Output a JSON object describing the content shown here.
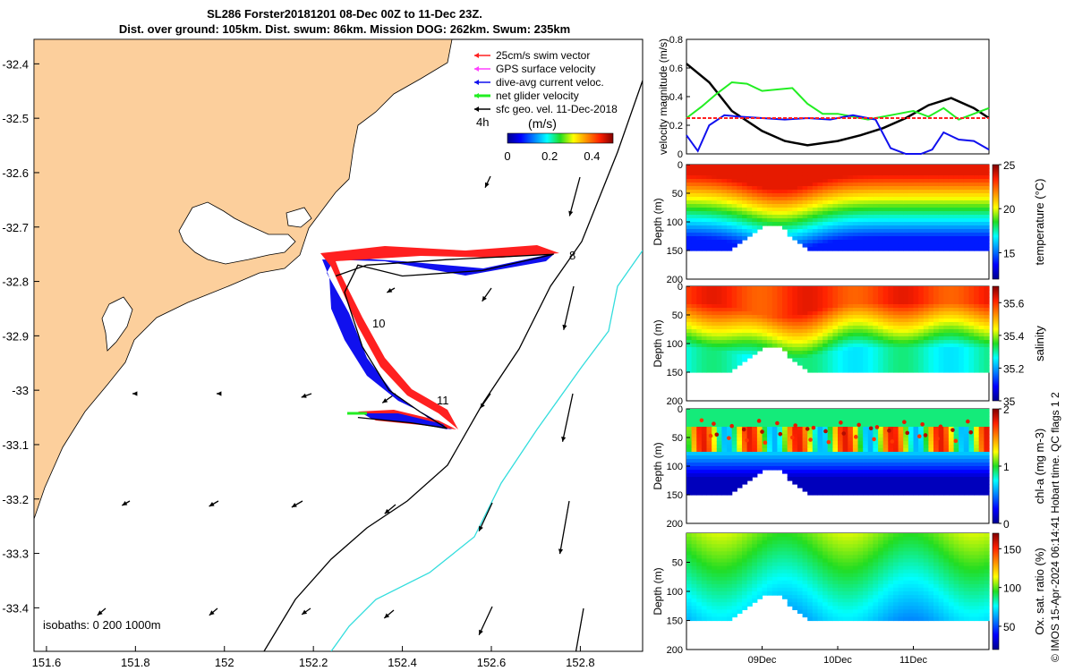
{
  "title": {
    "line1": "SL286 Forster20181201 08-Dec 00Z to 11-Dec 23Z.",
    "line2": "Dist. over ground: 105km. Dist. swum: 86km. Mission DOG: 262km. Swum: 235km"
  },
  "side_note": "© IMOS 15-Apr-2024 06:14:41 Hobart time. QC flags 1 2",
  "colors": {
    "land": "#fccf9c",
    "swim_vector": "#ff2020",
    "gps_velocity": "#ff40ff",
    "current": "#1010ee",
    "net_velocity": "#22ee22",
    "sfc_geo": "#000000",
    "isobath_200": "#000000",
    "isobath_1000": "#33dddd"
  },
  "chart_data": [
    {
      "type": "map",
      "x_ticks": [
        "151.6",
        "151.8",
        "152",
        "152.2",
        "152.4",
        "152.6",
        "152.8"
      ],
      "y_ticks": [
        "-32.4",
        "-32.5",
        "-32.6",
        "-32.7",
        "-32.8",
        "-32.9",
        "-33",
        "-33.1",
        "-33.2",
        "-33.3",
        "-33.4"
      ],
      "legend": [
        {
          "label": "25cm/s swim vector",
          "color": "#ff2020"
        },
        {
          "label": "GPS surface velocity",
          "color": "#ff40ff"
        },
        {
          "label": "dive-avg current veloc.",
          "color": "#1010ee"
        },
        {
          "label": "net glider velocity",
          "color": "#22ee22"
        },
        {
          "label": "sfc geo. vel. 11-Dec-2018",
          "color": "#000000"
        }
      ],
      "legend_note": "4h",
      "colorbar": {
        "label": "(m/s)",
        "ticks": [
          "0",
          "0.2",
          "0.4"
        ]
      },
      "day_labels": [
        "8",
        "10",
        "11"
      ],
      "isobath_label": "isobaths: 0   200  1000m",
      "track": [
        [
          152.25,
          -32.79
        ],
        [
          152.32,
          -32.77
        ],
        [
          152.5,
          -32.76
        ],
        [
          152.74,
          -32.75
        ],
        [
          152.58,
          -32.78
        ],
        [
          152.4,
          -32.79
        ],
        [
          152.3,
          -32.77
        ],
        [
          152.27,
          -32.82
        ],
        [
          152.31,
          -32.92
        ],
        [
          152.37,
          -33.0
        ],
        [
          152.44,
          -33.04
        ],
        [
          152.5,
          -33.07
        ],
        [
          152.42,
          -33.06
        ],
        [
          152.3,
          -33.05
        ]
      ]
    },
    {
      "type": "line",
      "ylabel": "velocity magnitude (m/s)",
      "ylim": [
        0,
        0.8
      ],
      "y_ticks": [
        "0",
        "0.2",
        "0.4",
        "0.6",
        "0.8"
      ],
      "x_range_days": [
        8,
        12
      ],
      "series": [
        {
          "color": "#000000",
          "x": [
            8.0,
            8.3,
            8.6,
            9.0,
            9.3,
            9.6,
            10.0,
            10.3,
            10.6,
            10.9,
            11.2,
            11.5,
            11.8,
            12.0
          ],
          "y": [
            0.63,
            0.5,
            0.3,
            0.16,
            0.09,
            0.06,
            0.09,
            0.13,
            0.18,
            0.25,
            0.34,
            0.39,
            0.32,
            0.25
          ]
        },
        {
          "color": "#22ee22",
          "x": [
            8.0,
            8.2,
            8.4,
            8.6,
            8.8,
            9.0,
            9.2,
            9.4,
            9.6,
            9.8,
            10.0,
            10.2,
            10.4,
            10.6,
            10.8,
            11.0,
            11.2,
            11.4,
            11.6,
            11.8,
            12.0
          ],
          "y": [
            0.25,
            0.33,
            0.42,
            0.5,
            0.49,
            0.44,
            0.45,
            0.46,
            0.35,
            0.28,
            0.28,
            0.26,
            0.24,
            0.26,
            0.28,
            0.3,
            0.26,
            0.32,
            0.24,
            0.28,
            0.32
          ]
        },
        {
          "color": "#1010ee",
          "x": [
            8.0,
            8.15,
            8.3,
            8.5,
            8.7,
            9.0,
            9.3,
            9.6,
            9.9,
            10.2,
            10.5,
            10.7,
            10.9,
            11.1,
            11.25,
            11.4,
            11.6,
            11.8,
            12.0
          ],
          "y": [
            0.13,
            0.02,
            0.2,
            0.27,
            0.26,
            0.25,
            0.24,
            0.25,
            0.24,
            0.27,
            0.24,
            0.04,
            0.0,
            0.0,
            0.03,
            0.15,
            0.1,
            0.09,
            0.03
          ]
        },
        {
          "color": "#ff2020",
          "x": [
            8.0,
            12.0
          ],
          "y": [
            0.25,
            0.25
          ]
        }
      ]
    },
    {
      "type": "heatmap",
      "ylabel": "Depth (m)",
      "y_ticks": [
        "0",
        "50",
        "100",
        "150",
        "200"
      ],
      "cbar_label": "temperature (°C)",
      "cbar_ticks": [
        "15",
        "20",
        "25"
      ],
      "clim": [
        12,
        25
      ]
    },
    {
      "type": "heatmap",
      "ylabel": "Depth (m)",
      "y_ticks": [
        "0",
        "50",
        "100",
        "150",
        "200"
      ],
      "cbar_label": "salinity",
      "cbar_ticks": [
        "35",
        "35.2",
        "35.4",
        "35.6"
      ],
      "clim": [
        35.0,
        35.7
      ]
    },
    {
      "type": "heatmap",
      "ylabel": "Depth (m)",
      "y_ticks": [
        "0",
        "50",
        "100",
        "150",
        "200"
      ],
      "cbar_label": "chl-a (mg m-3)",
      "cbar_ticks": [
        "0",
        "1",
        "2"
      ],
      "clim": [
        0,
        2
      ]
    },
    {
      "type": "heatmap",
      "ylabel": "Depth (m)",
      "y_ticks": [
        "50",
        "100",
        "150",
        "200"
      ],
      "cbar_label": "Ox. sat. ratio (%)",
      "cbar_ticks": [
        "50",
        "100",
        "150"
      ],
      "clim": [
        20,
        170
      ],
      "x_ticks": [
        "09Dec",
        "10Dec",
        "11Dec"
      ]
    }
  ]
}
